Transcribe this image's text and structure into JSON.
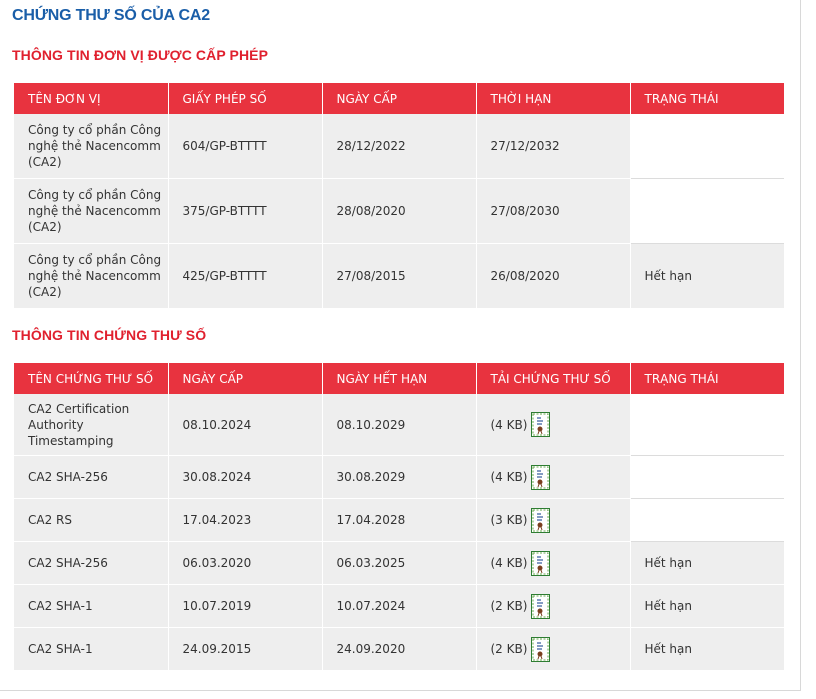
{
  "page_title": "CHỨNG THƯ SỐ CỦA CA2",
  "license_section": {
    "title": "THÔNG TIN ĐƠN VỊ ĐƯỢC CẤP PHÉP",
    "headers": [
      "TÊN ĐƠN VỊ",
      "GIẤY PHÉP SỐ",
      "NGÀY CẤP",
      "THỜI HẠN",
      "TRẠNG THÁI"
    ],
    "rows": [
      {
        "unit": "Công ty cổ phần Công nghệ thẻ Nacencomm (CA2)",
        "license": "604/GP-BTTTT",
        "issued": "28/12/2022",
        "term": "27/12/2032",
        "status": ""
      },
      {
        "unit": "Công ty cổ phần Công nghệ thẻ Nacencomm (CA2)",
        "license": "375/GP-BTTTT",
        "issued": "28/08/2020",
        "term": "27/08/2030",
        "status": ""
      },
      {
        "unit": "Công ty cổ phần Công nghệ thẻ Nacencomm (CA2)",
        "license": "425/GP-BTTTT",
        "issued": "27/08/2015",
        "term": "26/08/2020",
        "status": "Hết hạn"
      }
    ]
  },
  "cert_section": {
    "title": "THÔNG TIN CHỨNG THƯ SỐ",
    "headers": [
      "TÊN CHỨNG THƯ SỐ",
      "NGÀY CẤP",
      "NGÀY HẾT HẠN",
      "TẢI CHỨNG THƯ SỐ",
      "TRẠNG THÁI"
    ],
    "download_icon": "certificate-file-icon",
    "rows": [
      {
        "name": "CA2 Certification Authority Timestamping",
        "issued": "08.10.2024",
        "expires": "08.10.2029",
        "size": "(4 KB)",
        "status": ""
      },
      {
        "name": "CA2 SHA-256",
        "issued": "30.08.2024",
        "expires": "30.08.2029",
        "size": "(4 KB)",
        "status": ""
      },
      {
        "name": "CA2 RS",
        "issued": "17.04.2023",
        "expires": "17.04.2028",
        "size": "(3 KB)",
        "status": ""
      },
      {
        "name": "CA2 SHA-256",
        "issued": "06.03.2020",
        "expires": "06.03.2025",
        "size": "(4 KB)",
        "status": "Hết hạn"
      },
      {
        "name": "CA2 SHA-1",
        "issued": "10.07.2019",
        "expires": "10.07.2024",
        "size": "(2 KB)",
        "status": "Hết hạn"
      },
      {
        "name": "CA2 SHA-1",
        "issued": "24.09.2015",
        "expires": "24.09.2020",
        "size": "(2 KB)",
        "status": "Hết hạn"
      }
    ]
  },
  "colors": {
    "title_blue": "#1a5ea8",
    "section_red": "#e0202e",
    "header_red": "#e8333f",
    "row_gray": "#eeeeee"
  }
}
